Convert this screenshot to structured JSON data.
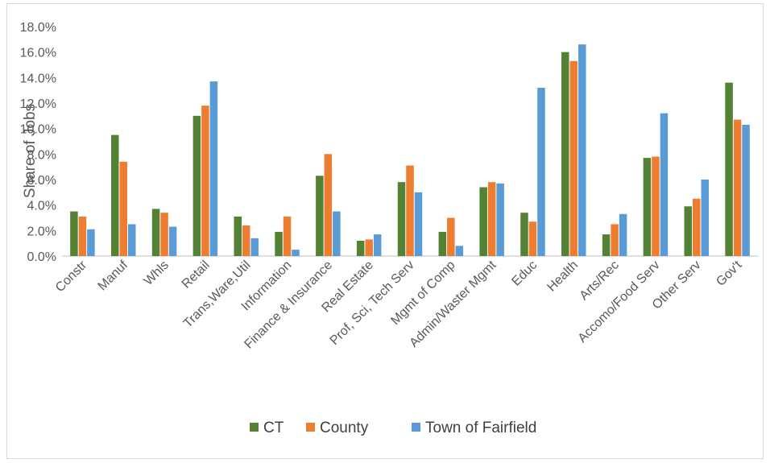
{
  "chart_data": {
    "type": "bar",
    "title": "",
    "xlabel": "",
    "ylabel": "Share of Jobs",
    "ylim": [
      0,
      0.18
    ],
    "ytick_labels": [
      "0.0%",
      "2.0%",
      "4.0%",
      "6.0%",
      "8.0%",
      "10.0%",
      "12.0%",
      "14.0%",
      "16.0%",
      "18.0%"
    ],
    "grid": false,
    "legend_position": "bottom",
    "categories": [
      "Constr",
      "Manuf",
      "Whls",
      "Retail",
      "Trans,Ware,Util",
      "Information",
      "Finance & Insurance",
      "Real Estate",
      "Prof, Sci, Tech Serv",
      "Mgmt of Comp",
      "Admin/Waster Mgmt",
      "Educ",
      "Health",
      "Arts/Rec",
      "Accomo/Food Serv",
      "Other Serv",
      "Gov't"
    ],
    "series": [
      {
        "name": "CT",
        "color": "#548235",
        "values": [
          0.035,
          0.095,
          0.037,
          0.11,
          0.031,
          0.019,
          0.063,
          0.012,
          0.058,
          0.019,
          0.054,
          0.034,
          0.16,
          0.017,
          0.077,
          0.039,
          0.136
        ]
      },
      {
        "name": "County",
        "color": "#ED7D31",
        "values": [
          0.031,
          0.074,
          0.034,
          0.118,
          0.024,
          0.031,
          0.08,
          0.013,
          0.071,
          0.03,
          0.058,
          0.027,
          0.153,
          0.025,
          0.078,
          0.045,
          0.107
        ]
      },
      {
        "name": "Town of Fairfield",
        "color": "#5B9BD5",
        "values": [
          0.021,
          0.025,
          0.023,
          0.137,
          0.014,
          0.005,
          0.035,
          0.017,
          0.05,
          0.008,
          0.057,
          0.132,
          0.166,
          0.033,
          0.112,
          0.06,
          0.103
        ]
      }
    ]
  }
}
